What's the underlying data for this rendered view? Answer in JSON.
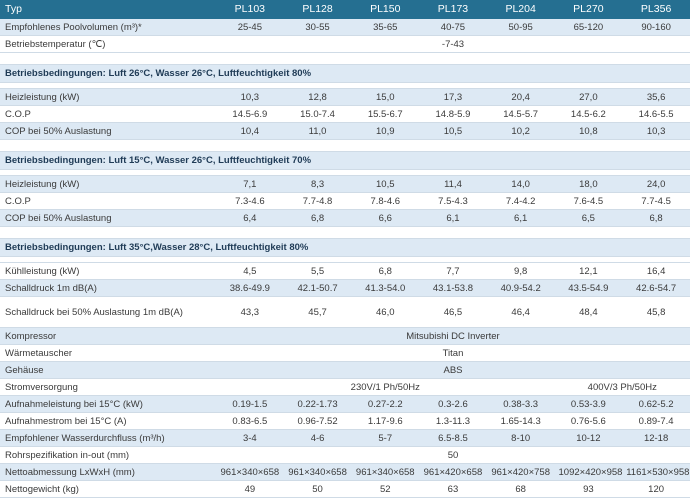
{
  "header": [
    "Typ",
    "PL103",
    "PL128",
    "PL150",
    "PL173",
    "PL204",
    "PL270",
    "PL356"
  ],
  "sections": [
    {
      "rows": [
        [
          "Empfohlenes Poolvolumen (m³)*",
          "25-45",
          "30-55",
          "35-65",
          "40-75",
          "50-95",
          "65-120",
          "90-160"
        ],
        [
          "Betriebstemperatur (℃)",
          "-7-43"
        ]
      ]
    },
    {
      "heading": "Betriebsbedingungen: Luft 26°C, Wasser 26°C, Luftfeuchtigkeit 80%",
      "rows": [
        [
          "Heizleistung (kW)",
          "10,3",
          "12,8",
          "15,0",
          "17,3",
          "20,4",
          "27,0",
          "35,6"
        ],
        [
          "C.O.P",
          "14.5-6.9",
          "15.0-7.4",
          "15.5-6.7",
          "14.8-5.9",
          "14.5-5.7",
          "14.5-6.2",
          "14.6-5.5"
        ],
        [
          "COP bei 50% Auslastung",
          "10,4",
          "11,0",
          "10,9",
          "10,5",
          "10,2",
          "10,8",
          "10,3"
        ]
      ]
    },
    {
      "heading": "Betriebsbedingungen: Luft 15°C, Wasser 26°C, Luftfeuchtigkeit 70%",
      "rows": [
        [
          "Heizleistung (kW)",
          "7,1",
          "8,3",
          "10,5",
          "11,4",
          "14,0",
          "18,0",
          "24,0"
        ],
        [
          "C.O.P",
          "7.3-4.6",
          "7.7-4.8",
          "7.8-4.6",
          "7.5-4.3",
          "7.4-4.2",
          "7.6-4.5",
          "7.7-4.5"
        ],
        [
          "COP bei 50% Auslastung",
          "6,4",
          "6,8",
          "6,6",
          "6,1",
          "6,1",
          "6,5",
          "6,8"
        ]
      ]
    },
    {
      "heading": "Betriebsbedingungen: Luft 35°C,Wasser 28°C, Luftfeuchtigkeit 80%",
      "rows": [
        [
          "Kühlleistung (kW)",
          "4,5",
          "5,5",
          "6,8",
          "7,7",
          "9,8",
          "12,1",
          "16,4"
        ],
        [
          "Schalldruck 1m dB(A)",
          "38.6-49.9",
          "42.1-50.7",
          "41.3-54.0",
          "43.1-53.8",
          "40.9-54.2",
          "43.5-54.9",
          "42.6-54.7"
        ],
        [
          "Schalldruck bei 50% Auslastung 1m dB(A)",
          "43,3",
          "45,7",
          "46,0",
          "46,5",
          "46,4",
          "48,4",
          "45,8"
        ],
        [
          "Kompressor",
          "Mitsubishi DC Inverter"
        ],
        [
          "Wärmetauscher",
          "Titan"
        ],
        [
          "Gehäuse",
          "ABS"
        ],
        [
          "Stromversorgung",
          "230V/1 Ph/50Hz",
          "400V/3 Ph/50Hz"
        ],
        [
          "Aufnahmeleistung bei 15°C (kW)",
          "0.19-1.5",
          "0.22-1.73",
          "0.27-2.2",
          "0.3-2.6",
          "0.38-3.3",
          "0.53-3.9",
          "0.62-5.2"
        ],
        [
          "Aufnahmestrom bei 15°C (A)",
          "0.83-6.5",
          "0.96-7.52",
          "1.17-9.6",
          "1.3-11.3",
          "1.65-14.3",
          "0.76-5.6",
          "0.89-7.4"
        ],
        [
          "Empfohlener Wasserdurchfluss (m³/h)",
          "3-4",
          "4-6",
          "5-7",
          "6.5-8.5",
          "8-10",
          "10-12",
          "12-18"
        ],
        [
          "Rohrspezifikation in-out (mm)",
          "50"
        ],
        [
          "Nettoabmessung LxWxH (mm)",
          "961×340×658",
          "961×340×658",
          "961×340×658",
          "961×420×658",
          "961×420×758",
          "1092×420×958",
          "1161×530×958"
        ],
        [
          "Nettogewicht (kg)",
          "49",
          "50",
          "52",
          "63",
          "68",
          "93",
          "120"
        ]
      ]
    }
  ]
}
